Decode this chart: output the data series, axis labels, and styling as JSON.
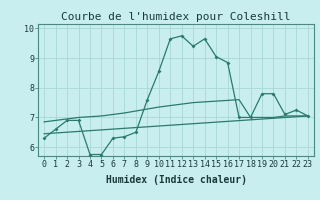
{
  "title": "Courbe de l'humidex pour Coleshill",
  "xlabel": "Humidex (Indice chaleur)",
  "ylabel": "",
  "bg_color": "#c8eef0",
  "line_color": "#2a7a6e",
  "grid_color": "#a8d8d8",
  "xmin": -0.5,
  "xmax": 23.5,
  "ymin": 5.7,
  "ymax": 10.15,
  "yticks": [
    6,
    7,
    8,
    9,
    10
  ],
  "xticks": [
    0,
    1,
    2,
    3,
    4,
    5,
    6,
    7,
    8,
    9,
    10,
    11,
    12,
    13,
    14,
    15,
    16,
    17,
    18,
    19,
    20,
    21,
    22,
    23
  ],
  "curve1_x": [
    0,
    1,
    2,
    3,
    4,
    5,
    6,
    7,
    8,
    9,
    10,
    11,
    12,
    13,
    14,
    15,
    16,
    17,
    18,
    19,
    20,
    21,
    22,
    23
  ],
  "curve1_y": [
    6.3,
    6.6,
    6.9,
    6.9,
    5.75,
    5.75,
    6.3,
    6.35,
    6.5,
    7.6,
    8.55,
    9.65,
    9.75,
    9.4,
    9.65,
    9.05,
    8.85,
    7.0,
    7.0,
    7.8,
    7.8,
    7.1,
    7.25,
    7.05
  ],
  "curve2_x": [
    0,
    23
  ],
  "curve2_y": [
    6.45,
    7.05
  ],
  "curve3_x": [
    0,
    3,
    5,
    7,
    10,
    13,
    15,
    17,
    18,
    20,
    21,
    22,
    23
  ],
  "curve3_y": [
    6.85,
    7.0,
    7.05,
    7.15,
    7.35,
    7.5,
    7.55,
    7.6,
    7.0,
    7.0,
    7.05,
    7.05,
    7.05
  ],
  "title_fontsize": 8,
  "axis_fontsize": 7,
  "tick_fontsize": 6
}
